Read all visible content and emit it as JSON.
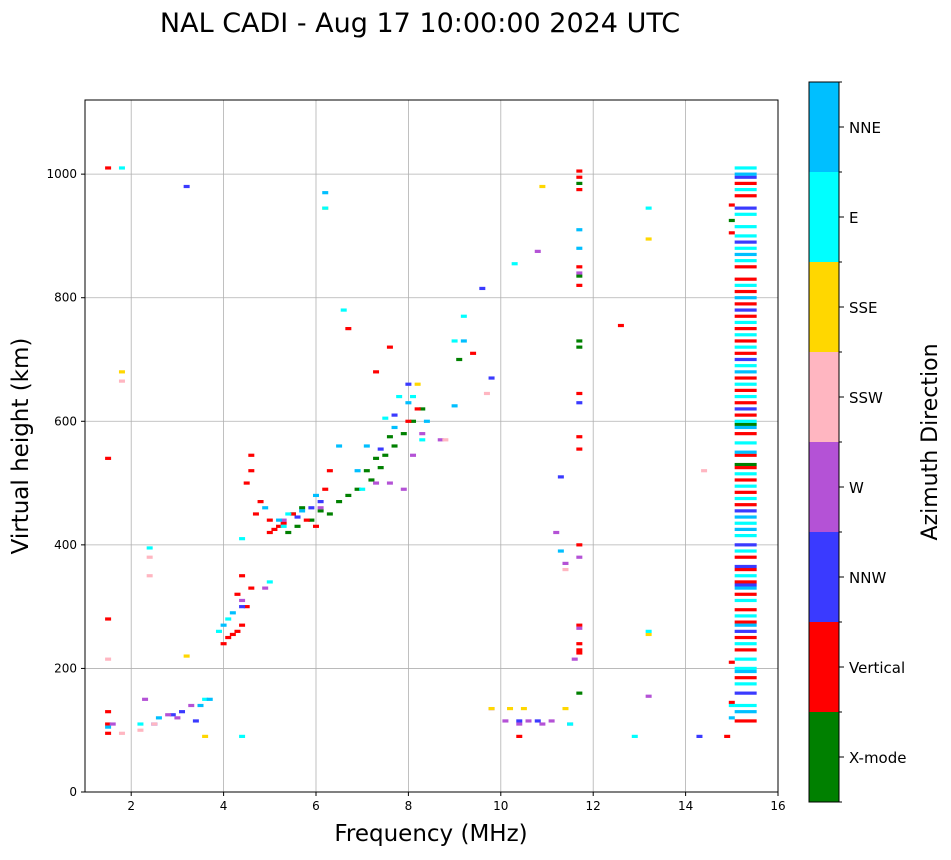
{
  "chart_data": {
    "type": "scatter",
    "title": "NAL CADI - Aug 17 10:00:00 2024 UTC",
    "xlabel": "Frequency (MHz)",
    "ylabel": "Virtual height (km)",
    "xlim": [
      1,
      16
    ],
    "ylim": [
      0,
      1120
    ],
    "grid": true,
    "x_ticks": [
      2,
      4,
      6,
      8,
      10,
      12,
      14,
      16
    ],
    "y_ticks": [
      0,
      200,
      400,
      600,
      800,
      1000
    ],
    "colorbar": {
      "label": "Azimuth Direction",
      "categories": [
        "X-mode",
        "Vertical",
        "NNW",
        "W",
        "SSW",
        "SSE",
        "E",
        "NNE"
      ],
      "colors": [
        "#008000",
        "#ff0000",
        "#3a3aff",
        "#b452d6",
        "#ffb6c1",
        "#ffd700",
        "#00ffff",
        "#00bfff"
      ]
    },
    "series": [
      {
        "name": "X-mode",
        "points": [
          [
            5.5,
            450
          ],
          [
            5.7,
            460
          ],
          [
            5.9,
            440
          ],
          [
            6.1,
            455
          ],
          [
            6.3,
            450
          ],
          [
            6.5,
            470
          ],
          [
            6.7,
            480
          ],
          [
            6.9,
            490
          ],
          [
            7.1,
            520
          ],
          [
            7.3,
            540
          ],
          [
            7.5,
            545
          ],
          [
            7.7,
            560
          ],
          [
            7.9,
            580
          ],
          [
            8.1,
            600
          ],
          [
            8.3,
            620
          ],
          [
            9.1,
            700
          ],
          [
            11.7,
            720
          ],
          [
            11.7,
            730
          ],
          [
            11.7,
            835
          ],
          [
            11.7,
            985
          ],
          [
            11.7,
            160
          ],
          [
            15.0,
            925
          ],
          [
            15.3,
            595
          ],
          [
            15.3,
            530
          ],
          [
            5.4,
            420
          ],
          [
            5.6,
            430
          ],
          [
            7.2,
            505
          ],
          [
            7.4,
            525
          ],
          [
            7.6,
            575
          ]
        ]
      },
      {
        "name": "Vertical",
        "points": [
          [
            1.5,
            1010
          ],
          [
            1.5,
            540
          ],
          [
            1.5,
            280
          ],
          [
            1.5,
            130
          ],
          [
            1.5,
            110
          ],
          [
            1.5,
            95
          ],
          [
            4.0,
            240
          ],
          [
            4.1,
            250
          ],
          [
            4.2,
            255
          ],
          [
            4.3,
            260
          ],
          [
            4.4,
            270
          ],
          [
            4.5,
            300
          ],
          [
            4.3,
            320
          ],
          [
            4.6,
            330
          ],
          [
            4.4,
            350
          ],
          [
            4.5,
            500
          ],
          [
            4.6,
            520
          ],
          [
            4.6,
            545
          ],
          [
            4.8,
            470
          ],
          [
            4.7,
            450
          ],
          [
            5.0,
            420
          ],
          [
            5.1,
            425
          ],
          [
            5.2,
            430
          ],
          [
            5.0,
            440
          ],
          [
            5.3,
            435
          ],
          [
            5.5,
            450
          ],
          [
            5.8,
            440
          ],
          [
            6.0,
            430
          ],
          [
            6.2,
            490
          ],
          [
            6.3,
            520
          ],
          [
            6.7,
            750
          ],
          [
            7.3,
            680
          ],
          [
            7.6,
            720
          ],
          [
            8.0,
            600
          ],
          [
            8.2,
            620
          ],
          [
            9.4,
            710
          ],
          [
            11.7,
            1005
          ],
          [
            11.7,
            995
          ],
          [
            11.7,
            975
          ],
          [
            11.7,
            850
          ],
          [
            11.7,
            820
          ],
          [
            11.7,
            645
          ],
          [
            11.7,
            575
          ],
          [
            11.7,
            555
          ],
          [
            11.7,
            400
          ],
          [
            11.7,
            270
          ],
          [
            11.7,
            240
          ],
          [
            11.7,
            230
          ],
          [
            11.7,
            225
          ],
          [
            12.6,
            755
          ],
          [
            15.0,
            950
          ],
          [
            15.0,
            905
          ],
          [
            15.0,
            210
          ],
          [
            15.0,
            145
          ],
          [
            15.3,
            985
          ],
          [
            15.3,
            965
          ],
          [
            15.3,
            850
          ],
          [
            15.3,
            830
          ],
          [
            15.3,
            810
          ],
          [
            15.3,
            790
          ],
          [
            15.3,
            770
          ],
          [
            15.3,
            750
          ],
          [
            15.3,
            730
          ],
          [
            15.3,
            710
          ],
          [
            15.3,
            670
          ],
          [
            15.3,
            650
          ],
          [
            15.3,
            630
          ],
          [
            15.3,
            610
          ],
          [
            15.3,
            580
          ],
          [
            15.3,
            545
          ],
          [
            15.3,
            525
          ],
          [
            15.3,
            505
          ],
          [
            15.3,
            485
          ],
          [
            15.3,
            465
          ],
          [
            15.3,
            380
          ],
          [
            15.3,
            360
          ],
          [
            15.3,
            340
          ],
          [
            15.3,
            320
          ],
          [
            15.3,
            295
          ],
          [
            15.3,
            275
          ],
          [
            15.3,
            250
          ],
          [
            15.3,
            230
          ],
          [
            15.3,
            185
          ],
          [
            15.3,
            115
          ],
          [
            14.9,
            90
          ],
          [
            10.4,
            90
          ]
        ]
      },
      {
        "name": "NNW",
        "points": [
          [
            3.2,
            980
          ],
          [
            2.5,
            110
          ],
          [
            2.9,
            125
          ],
          [
            3.1,
            130
          ],
          [
            3.4,
            115
          ],
          [
            4.4,
            300
          ],
          [
            5.6,
            445
          ],
          [
            5.9,
            460
          ],
          [
            6.1,
            470
          ],
          [
            7.4,
            555
          ],
          [
            7.7,
            610
          ],
          [
            8.0,
            660
          ],
          [
            9.6,
            815
          ],
          [
            9.8,
            670
          ],
          [
            10.4,
            115
          ],
          [
            10.8,
            115
          ],
          [
            11.3,
            510
          ],
          [
            11.7,
            630
          ],
          [
            14.3,
            90
          ],
          [
            15.3,
            995
          ],
          [
            15.3,
            945
          ],
          [
            15.3,
            890
          ],
          [
            15.3,
            780
          ],
          [
            15.3,
            700
          ],
          [
            15.3,
            620
          ],
          [
            15.3,
            455
          ],
          [
            15.3,
            400
          ],
          [
            15.3,
            365
          ],
          [
            15.3,
            335
          ],
          [
            15.3,
            260
          ],
          [
            15.3,
            160
          ]
        ]
      },
      {
        "name": "W",
        "points": [
          [
            1.6,
            110
          ],
          [
            2.3,
            150
          ],
          [
            2.8,
            125
          ],
          [
            3.0,
            120
          ],
          [
            3.3,
            140
          ],
          [
            4.4,
            310
          ],
          [
            4.9,
            330
          ],
          [
            5.3,
            440
          ],
          [
            6.1,
            460
          ],
          [
            7.3,
            500
          ],
          [
            7.6,
            500
          ],
          [
            7.9,
            490
          ],
          [
            8.1,
            545
          ],
          [
            8.3,
            580
          ],
          [
            8.7,
            570
          ],
          [
            9.8,
            135
          ],
          [
            10.1,
            115
          ],
          [
            10.4,
            110
          ],
          [
            10.6,
            115
          ],
          [
            10.9,
            110
          ],
          [
            11.1,
            115
          ],
          [
            11.5,
            110
          ],
          [
            11.2,
            420
          ],
          [
            11.4,
            370
          ],
          [
            11.6,
            215
          ],
          [
            11.7,
            380
          ],
          [
            11.7,
            265
          ],
          [
            11.7,
            840
          ],
          [
            13.2,
            155
          ],
          [
            10.8,
            875
          ]
        ]
      },
      {
        "name": "SSW",
        "points": [
          [
            1.5,
            215
          ],
          [
            1.8,
            665
          ],
          [
            2.4,
            350
          ],
          [
            2.4,
            380
          ],
          [
            2.5,
            110
          ],
          [
            2.2,
            100
          ],
          [
            1.8,
            95
          ],
          [
            8.8,
            570
          ],
          [
            9.7,
            645
          ],
          [
            14.4,
            520
          ],
          [
            11.4,
            360
          ]
        ]
      },
      {
        "name": "SSE",
        "points": [
          [
            1.8,
            680
          ],
          [
            3.2,
            220
          ],
          [
            3.6,
            90
          ],
          [
            6.2,
            945
          ],
          [
            8.2,
            660
          ],
          [
            9.8,
            135
          ],
          [
            10.2,
            135
          ],
          [
            10.5,
            135
          ],
          [
            10.9,
            980
          ],
          [
            11.4,
            135
          ],
          [
            13.2,
            895
          ],
          [
            13.2,
            255
          ]
        ]
      },
      {
        "name": "E",
        "points": [
          [
            1.8,
            1010
          ],
          [
            2.4,
            395
          ],
          [
            2.2,
            110
          ],
          [
            3.6,
            150
          ],
          [
            3.9,
            260
          ],
          [
            4.1,
            280
          ],
          [
            4.4,
            410
          ],
          [
            5.0,
            340
          ],
          [
            5.3,
            430
          ],
          [
            5.4,
            450
          ],
          [
            6.2,
            945
          ],
          [
            6.6,
            780
          ],
          [
            7.0,
            490
          ],
          [
            7.5,
            605
          ],
          [
            7.8,
            640
          ],
          [
            8.1,
            640
          ],
          [
            8.3,
            570
          ],
          [
            9.0,
            730
          ],
          [
            9.2,
            770
          ],
          [
            10.3,
            855
          ],
          [
            11.5,
            110
          ],
          [
            12.9,
            90
          ],
          [
            13.2,
            945
          ],
          [
            13.2,
            260
          ],
          [
            15.0,
            140
          ],
          [
            15.3,
            1010
          ],
          [
            15.3,
            975
          ],
          [
            15.3,
            935
          ],
          [
            15.3,
            915
          ],
          [
            15.3,
            900
          ],
          [
            15.3,
            880
          ],
          [
            15.3,
            860
          ],
          [
            15.3,
            820
          ],
          [
            15.3,
            760
          ],
          [
            15.3,
            740
          ],
          [
            15.3,
            720
          ],
          [
            15.3,
            690
          ],
          [
            15.3,
            660
          ],
          [
            15.3,
            640
          ],
          [
            15.3,
            600
          ],
          [
            15.3,
            565
          ],
          [
            15.3,
            515
          ],
          [
            15.3,
            495
          ],
          [
            15.3,
            475
          ],
          [
            15.3,
            435
          ],
          [
            15.3,
            415
          ],
          [
            15.3,
            390
          ],
          [
            15.3,
            350
          ],
          [
            15.3,
            310
          ],
          [
            15.3,
            285
          ],
          [
            15.3,
            240
          ],
          [
            15.3,
            215
          ],
          [
            15.3,
            200
          ],
          [
            15.3,
            175
          ],
          [
            15.3,
            140
          ],
          [
            4.4,
            90
          ]
        ]
      },
      {
        "name": "NNE",
        "points": [
          [
            1.5,
            105
          ],
          [
            2.6,
            120
          ],
          [
            3.5,
            140
          ],
          [
            3.7,
            150
          ],
          [
            4.0,
            270
          ],
          [
            4.2,
            290
          ],
          [
            4.9,
            460
          ],
          [
            5.2,
            440
          ],
          [
            5.7,
            455
          ],
          [
            6.0,
            480
          ],
          [
            6.2,
            970
          ],
          [
            6.5,
            560
          ],
          [
            6.9,
            520
          ],
          [
            7.1,
            560
          ],
          [
            7.7,
            590
          ],
          [
            8.0,
            630
          ],
          [
            8.4,
            600
          ],
          [
            9.0,
            625
          ],
          [
            9.2,
            730
          ],
          [
            11.3,
            390
          ],
          [
            11.7,
            910
          ],
          [
            11.7,
            880
          ],
          [
            15.3,
            1000
          ],
          [
            15.3,
            870
          ],
          [
            15.3,
            800
          ],
          [
            15.3,
            680
          ],
          [
            15.3,
            590
          ],
          [
            15.3,
            550
          ],
          [
            15.3,
            445
          ],
          [
            15.3,
            425
          ],
          [
            15.3,
            330
          ],
          [
            15.3,
            270
          ],
          [
            15.3,
            195
          ],
          [
            15.3,
            130
          ],
          [
            15.0,
            120
          ]
        ]
      }
    ]
  }
}
